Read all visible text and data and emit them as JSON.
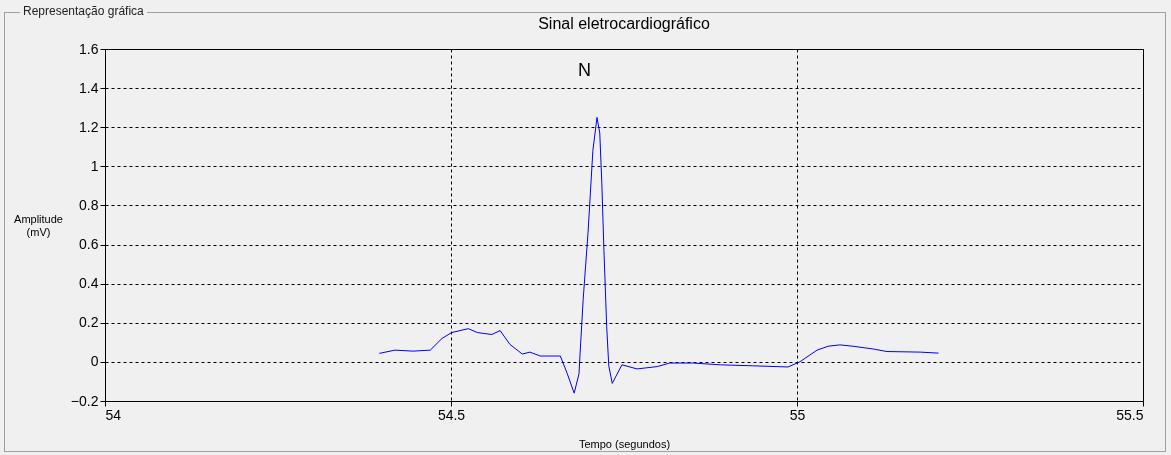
{
  "chart_data": {
    "type": "line",
    "title": "Sinal eletrocardiográfico",
    "xlabel": "Tempo (segundos)",
    "ylabel": "Amplitude (mV)",
    "annotations": [
      "Representação gráfica",
      "N"
    ],
    "xlim": [
      54,
      55.5
    ],
    "xticks": [
      54,
      54.5,
      55,
      55.5
    ],
    "ylim": [
      -0.2,
      1.6
    ],
    "yticks": [
      -0.2,
      0,
      0.2,
      0.4,
      0.6,
      0.8,
      1,
      1.2,
      1.4,
      1.6
    ],
    "grid": true,
    "marker": "none",
    "line_style": "solid",
    "series": [
      {
        "color": "#0000ff",
        "x": [
          54.397,
          54.419,
          54.445,
          54.47,
          54.487,
          54.501,
          54.525,
          54.538,
          54.559,
          54.571,
          54.585,
          54.603,
          54.614,
          54.629,
          54.658,
          54.668,
          54.678,
          54.685,
          54.686,
          54.691,
          54.698,
          54.705,
          54.711,
          54.715,
          54.718,
          54.721,
          54.725,
          54.728,
          54.733,
          54.747,
          54.769,
          54.798,
          54.816,
          54.85,
          54.889,
          54.936,
          54.987,
          55.004,
          55.029,
          55.045,
          55.062,
          55.081,
          55.11,
          55.13,
          55.178,
          55.204
        ],
        "values": [
          0.044,
          0.06,
          0.055,
          0.06,
          0.12,
          0.15,
          0.17,
          0.15,
          0.14,
          0.16,
          0.09,
          0.04,
          0.05,
          0.03,
          0.03,
          -0.06,
          -0.16,
          -0.06,
          0.01,
          0.32,
          0.66,
          1.08,
          1.25,
          1.17,
          0.91,
          0.57,
          0.18,
          -0.02,
          -0.11,
          -0.015,
          -0.036,
          -0.024,
          -0.006,
          -0.006,
          -0.015,
          -0.02,
          -0.026,
          0,
          0.06,
          0.08,
          0.087,
          0.08,
          0.066,
          0.053,
          0.05,
          0.045
        ]
      }
    ]
  }
}
